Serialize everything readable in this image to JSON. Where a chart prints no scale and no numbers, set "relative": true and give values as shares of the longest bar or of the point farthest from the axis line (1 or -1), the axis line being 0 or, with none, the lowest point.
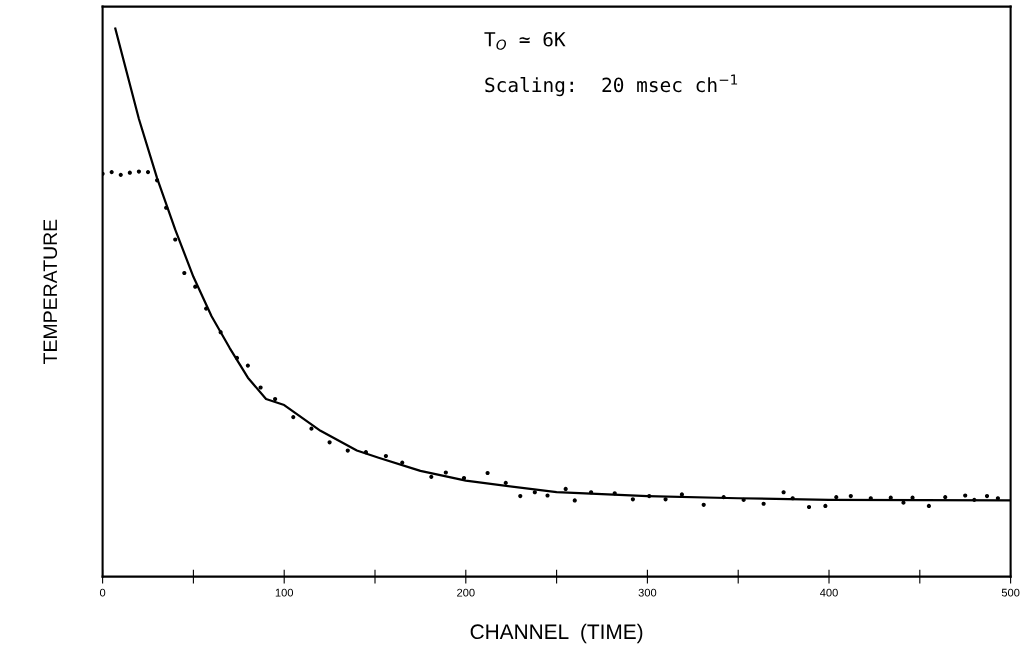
{
  "chart_data": {
    "type": "line",
    "relative": true,
    "xlabel": "CHANNEL  (TIME)",
    "ylabel": "TEMPERATURE",
    "annotations": [
      "T$_{O}$ ≃ 6K",
      "Scaling:  20 msec ch$^{−1}$"
    ],
    "xlim": [
      0,
      500
    ],
    "xticks": [
      0,
      {
        "value": 50,
        "label": null
      },
      100,
      {
        "value": 150,
        "label": null
      },
      200,
      {
        "value": 250,
        "label": null
      },
      300,
      {
        "value": 350,
        "label": null
      },
      400,
      {
        "value": 450,
        "label": null
      },
      500
    ],
    "grid": false,
    "legend": false,
    "series": [
      {
        "type": "scatter",
        "marker": "circle",
        "color": "#000000",
        "x": [
          0,
          5,
          10,
          15,
          20,
          25,
          30,
          35,
          40,
          45,
          51,
          57,
          65,
          74,
          80,
          87,
          95,
          105,
          115,
          125,
          135,
          145,
          156,
          165,
          181,
          189,
          199,
          212,
          222,
          230,
          238,
          245,
          255,
          260,
          269,
          282,
          292,
          301,
          310,
          319,
          331,
          342,
          353,
          364,
          375,
          380,
          389,
          398,
          404,
          412,
          423,
          434,
          441,
          446,
          455,
          464,
          475,
          480,
          487,
          493
        ],
        "values": [
          0.735,
          0.738,
          0.733,
          0.737,
          0.739,
          0.738,
          0.723,
          0.673,
          0.615,
          0.554,
          0.529,
          0.489,
          0.446,
          0.399,
          0.385,
          0.345,
          0.324,
          0.291,
          0.27,
          0.245,
          0.23,
          0.227,
          0.22,
          0.208,
          0.182,
          0.19,
          0.18,
          0.189,
          0.171,
          0.147,
          0.154,
          0.148,
          0.16,
          0.139,
          0.154,
          0.152,
          0.141,
          0.147,
          0.141,
          0.15,
          0.131,
          0.145,
          0.14,
          0.133,
          0.154,
          0.143,
          0.127,
          0.129,
          0.145,
          0.147,
          0.143,
          0.144,
          0.135,
          0.144,
          0.129,
          0.145,
          0.148,
          0.14,
          0.147,
          0.143
        ]
      },
      {
        "line_style": "solid",
        "color": "#000000",
        "x": [
          7,
          20,
          30,
          40,
          50,
          60,
          70,
          80,
          90,
          100,
          120,
          140,
          152,
          175,
          200,
          250,
          300,
          350,
          400,
          500
        ],
        "values": [
          1.0,
          0.835,
          0.727,
          0.633,
          0.547,
          0.475,
          0.417,
          0.363,
          0.324,
          0.313,
          0.266,
          0.23,
          0.217,
          0.193,
          0.175,
          0.154,
          0.147,
          0.143,
          0.14,
          0.139
        ]
      }
    ]
  }
}
